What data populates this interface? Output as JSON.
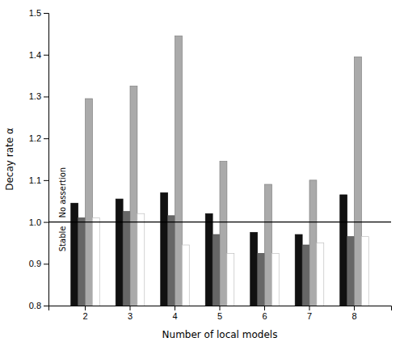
{
  "chart_data": {
    "type": "bar",
    "categories": [
      2,
      3,
      4,
      5,
      6,
      7,
      8
    ],
    "series": [
      {
        "color": "#111111",
        "values": [
          1.045,
          1.055,
          1.07,
          1.02,
          0.975,
          0.97,
          1.065
        ]
      },
      {
        "color": "#666666",
        "values": [
          1.01,
          1.025,
          1.015,
          0.97,
          0.925,
          0.945,
          0.965
        ]
      },
      {
        "color": "#aaaaaa",
        "values": [
          1.295,
          1.325,
          1.445,
          1.145,
          1.09,
          1.1,
          1.395
        ]
      },
      {
        "color": "#ffffff",
        "values": [
          1.01,
          1.02,
          0.945,
          0.925,
          0.925,
          0.95,
          0.965
        ]
      }
    ],
    "xlabel": "Number of local models",
    "ylabel": "Decay rate α",
    "ylim": [
      0.8,
      1.5
    ],
    "yticks": [
      0.8,
      0.9,
      {
        "value": 1.0,
        "label": "1.0"
      },
      1.1,
      1.2,
      1.3,
      1.4,
      1.5
    ],
    "reference_line": {
      "y": 1.0,
      "below_label": "Stable",
      "above_label": "No assertion"
    },
    "grid": false
  }
}
